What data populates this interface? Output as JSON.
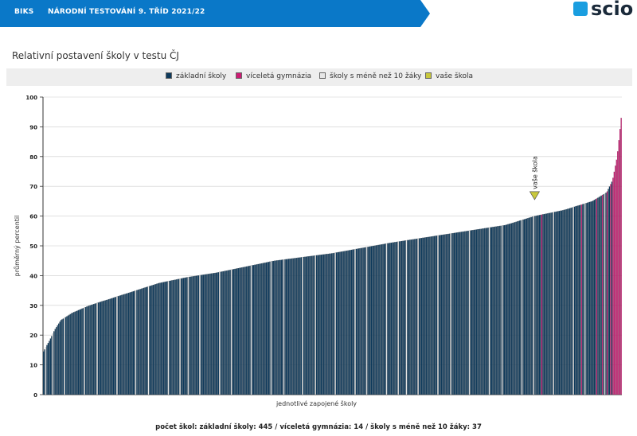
{
  "header": {
    "brand": "BIKS",
    "title": "NÁRODNÍ TESTOVÁNÍ 9. TŘÍD 2021/22",
    "logo_text": "scio"
  },
  "page_title": "Relativní postavení školy v testu ČJ",
  "legend": [
    {
      "label": "základní školy",
      "color": "#0e3a5c"
    },
    {
      "label": "víceletá gymnázia",
      "color": "#cc1c74"
    },
    {
      "label": "školy s méně než 10 žáky",
      "color": "#e6e6e6"
    },
    {
      "label": "vaše škola",
      "color": "#c8c83c"
    }
  ],
  "footer": "počet škol: základní školy: 445 / víceletá gymnázia: 14 / školy s méně než 10 žáky: 37",
  "chart_data": {
    "type": "bar",
    "xlabel": "jednotlivé zapojené školy",
    "ylabel": "průměrný percentil",
    "ylim": [
      0,
      100
    ],
    "yticks": [
      0,
      10,
      20,
      30,
      40,
      50,
      60,
      70,
      80,
      90,
      100
    ],
    "grid": true,
    "legend_position": "top",
    "counts": {
      "zakladni": 445,
      "gymnazia": 14,
      "male": 37
    },
    "colors": {
      "zakladni": "#0e3a5c",
      "gymnazia": "#cc1c74",
      "male": "#e6e6e6",
      "vase": "#c8c83c"
    },
    "curve_points": [
      [
        0,
        14.5
      ],
      [
        0.01,
        18
      ],
      [
        0.02,
        22
      ],
      [
        0.03,
        25
      ],
      [
        0.05,
        27.5
      ],
      [
        0.08,
        30
      ],
      [
        0.12,
        32.5
      ],
      [
        0.16,
        35
      ],
      [
        0.2,
        37.5
      ],
      [
        0.25,
        39.5
      ],
      [
        0.3,
        41
      ],
      [
        0.35,
        43
      ],
      [
        0.4,
        45
      ],
      [
        0.5,
        47.5
      ],
      [
        0.6,
        51
      ],
      [
        0.7,
        54
      ],
      [
        0.8,
        57
      ],
      [
        0.85,
        60
      ],
      [
        0.9,
        62
      ],
      [
        0.95,
        65
      ],
      [
        0.975,
        68
      ],
      [
        0.985,
        72
      ],
      [
        0.993,
        80
      ],
      [
        1.0,
        93
      ]
    ],
    "your_school": {
      "label": "vaše škola",
      "value": 65,
      "rank_fraction": 0.85
    }
  }
}
